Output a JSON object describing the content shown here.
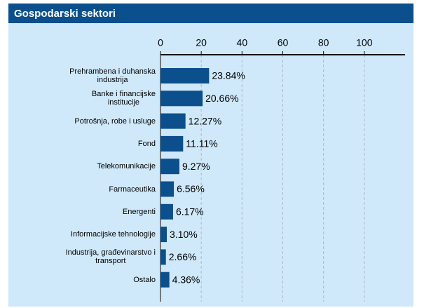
{
  "chart_data": {
    "type": "bar",
    "orientation": "horizontal",
    "title": "Gospodarski sektori",
    "categories": [
      "Prehrambena i duhanska\nindustrija",
      "Banke i financijske\ninstitucije",
      "Potrošnja, robe i usluge",
      "Fond",
      "Telekomunikacije",
      "Farmaceutika",
      "Energenti",
      "Informacijske tehnologije",
      "Industrija, građevinarstvo i\ntransport",
      "Ostalo"
    ],
    "values": [
      23.84,
      20.66,
      12.27,
      11.11,
      9.27,
      6.56,
      6.17,
      3.1,
      2.66,
      4.36
    ],
    "value_labels": [
      "23.84%",
      "20.66%",
      "12.27%",
      "11.11%",
      "9.27%",
      "6.56%",
      "6.17%",
      "3.10%",
      "2.66%",
      "4.36%"
    ],
    "color": "#0b4f8c",
    "xlim": [
      0,
      120
    ],
    "xticks": [
      0,
      20,
      40,
      60,
      80,
      100
    ],
    "grid": true
  }
}
